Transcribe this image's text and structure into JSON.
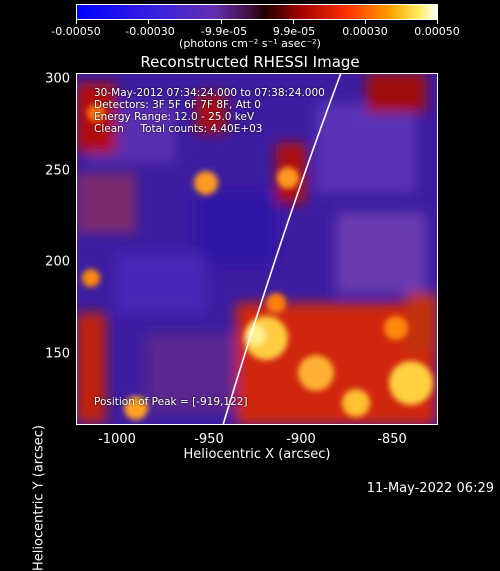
{
  "colorbar": {
    "tick_labels": [
      "-0.00050",
      "-0.00030",
      "-9.9e-05",
      "9.9e-05",
      "0.00030",
      "0.00050"
    ],
    "units": "(photons cm⁻² s⁻¹ asec⁻²)",
    "range": [
      -0.0005,
      0.0005
    ]
  },
  "image": {
    "title": "Reconstructed RHESSI Image",
    "time_range": "30-May-2012 07:34:24.000 to 07:38:24.000",
    "detectors": "Detectors: 3F 5F 6F 7F 8F, Att 0",
    "energy_range": "Energy Range: 12.0 - 25.0 keV",
    "algorithm": "Clean     Total counts: 4.40E+03",
    "peak": "Position of Peak = [-919,122]"
  },
  "axes": {
    "xlabel": "Heliocentric X (arcsec)",
    "ylabel": "Heliocentric Y (arcsec)",
    "xticks": [
      "-1000",
      "-950",
      "-900",
      "-850"
    ],
    "yticks": [
      "300",
      "250",
      "200",
      "150"
    ],
    "xlim": [
      -1020,
      -820
    ],
    "ylim": [
      110,
      302
    ]
  },
  "footer": {
    "timestamp": "11-May-2022 06:29"
  }
}
